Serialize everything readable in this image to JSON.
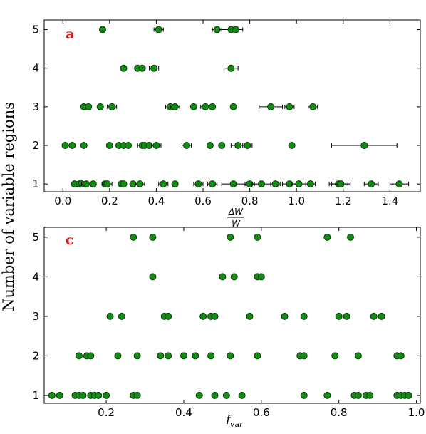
{
  "shared": {
    "ylabel": "Number of variable regions",
    "marker_color": "#138a13",
    "marker_edge": "#0b3d0b",
    "panel_letter_color": "#e8121a"
  },
  "chart_data": [
    {
      "type": "scatter",
      "panel_label": "a",
      "xlabel_numerator": "ΔW",
      "xlabel_denominator": "W",
      "xlim": [
        -0.08,
        1.53
      ],
      "ylim": [
        0.8,
        5.25
      ],
      "xticks": [
        "0.0",
        "0.2",
        "0.4",
        "0.6",
        "0.8",
        "1.0",
        "1.2",
        "1.4"
      ],
      "yticks": [
        "1",
        "2",
        "3",
        "4",
        "5"
      ],
      "points": [
        {
          "x": 0.17,
          "y": 5
        },
        {
          "x": 0.41,
          "y": 5,
          "xerr": 0.02
        },
        {
          "x": 0.66,
          "y": 5,
          "xerr": 0.02
        },
        {
          "x": 0.72,
          "y": 5,
          "xerr": 0.05
        },
        {
          "x": 0.74,
          "y": 5
        },
        {
          "x": 0.26,
          "y": 4
        },
        {
          "x": 0.32,
          "y": 4
        },
        {
          "x": 0.34,
          "y": 4
        },
        {
          "x": 0.39,
          "y": 4,
          "xerr": 0.02
        },
        {
          "x": 0.72,
          "y": 4,
          "xerr": 0.03
        },
        {
          "x": 0.09,
          "y": 3
        },
        {
          "x": 0.11,
          "y": 3
        },
        {
          "x": 0.16,
          "y": 3
        },
        {
          "x": 0.21,
          "y": 3,
          "xerr": 0.02
        },
        {
          "x": 0.46,
          "y": 3,
          "xerr": 0.02
        },
        {
          "x": 0.48,
          "y": 3,
          "xerr": 0.02
        },
        {
          "x": 0.56,
          "y": 3
        },
        {
          "x": 0.61,
          "y": 3,
          "xerr": 0.02
        },
        {
          "x": 0.64,
          "y": 3
        },
        {
          "x": 0.73,
          "y": 3
        },
        {
          "x": 0.89,
          "y": 3,
          "xerr": 0.05
        },
        {
          "x": 0.97,
          "y": 3,
          "xerr": 0.02
        },
        {
          "x": 1.07,
          "y": 3,
          "xerr": 0.02
        },
        {
          "x": 0.01,
          "y": 2
        },
        {
          "x": 0.04,
          "y": 2
        },
        {
          "x": 0.09,
          "y": 2
        },
        {
          "x": 0.2,
          "y": 2
        },
        {
          "x": 0.24,
          "y": 2
        },
        {
          "x": 0.26,
          "y": 2
        },
        {
          "x": 0.28,
          "y": 2
        },
        {
          "x": 0.34,
          "y": 2,
          "xerr": 0.02
        },
        {
          "x": 0.35,
          "y": 2
        },
        {
          "x": 0.37,
          "y": 2
        },
        {
          "x": 0.4,
          "y": 2,
          "xerr": 0.02
        },
        {
          "x": 0.53,
          "y": 2,
          "xerr": 0.02
        },
        {
          "x": 0.63,
          "y": 2
        },
        {
          "x": 0.68,
          "y": 2
        },
        {
          "x": 0.75,
          "y": 2,
          "xerr": 0.03
        },
        {
          "x": 0.79,
          "y": 2,
          "xerr": 0.02
        },
        {
          "x": 0.98,
          "y": 2
        },
        {
          "x": 1.29,
          "y": 2,
          "xerr": 0.14
        },
        {
          "x": 0.05,
          "y": 1
        },
        {
          "x": 0.07,
          "y": 1
        },
        {
          "x": 0.08,
          "y": 1
        },
        {
          "x": 0.1,
          "y": 1,
          "xerr": 0.02
        },
        {
          "x": 0.13,
          "y": 1
        },
        {
          "x": 0.18,
          "y": 1
        },
        {
          "x": 0.19,
          "y": 1,
          "xerr": 0.02
        },
        {
          "x": 0.25,
          "y": 1
        },
        {
          "x": 0.26,
          "y": 1
        },
        {
          "x": 0.3,
          "y": 1
        },
        {
          "x": 0.33,
          "y": 1,
          "xerr": 0.02
        },
        {
          "x": 0.43,
          "y": 1,
          "xerr": 0.02
        },
        {
          "x": 0.48,
          "y": 1
        },
        {
          "x": 0.58,
          "y": 1,
          "xerr": 0.02
        },
        {
          "x": 0.64,
          "y": 1,
          "xerr": 0.02
        },
        {
          "x": 0.73,
          "y": 1,
          "xerr": 0.05
        },
        {
          "x": 0.8,
          "y": 1,
          "xerr": 0.02
        },
        {
          "x": 0.85,
          "y": 1,
          "xerr": 0.04
        },
        {
          "x": 0.91,
          "y": 1,
          "xerr": 0.02
        },
        {
          "x": 0.97,
          "y": 1,
          "xerr": 0.03
        },
        {
          "x": 1.01,
          "y": 1,
          "xerr": 0.03
        },
        {
          "x": 1.06,
          "y": 1,
          "xerr": 0.02
        },
        {
          "x": 1.18,
          "y": 1,
          "xerr": 0.04
        },
        {
          "x": 1.19,
          "y": 1,
          "xerr": 0.04
        },
        {
          "x": 1.32,
          "y": 1,
          "xerr": 0.03
        },
        {
          "x": 1.44,
          "y": 1,
          "xerr": 0.04
        }
      ]
    },
    {
      "type": "scatter",
      "panel_label": "c",
      "xlabel_main": "f",
      "xlabel_sub": "var",
      "xlim": [
        0.04,
        1.01
      ],
      "ylim": [
        0.8,
        5.25
      ],
      "xticks": [
        "0.2",
        "0.4",
        "0.6",
        "0.8",
        "1.0"
      ],
      "yticks": [
        "1",
        "2",
        "3",
        "4",
        "5"
      ],
      "points": [
        {
          "x": 0.27,
          "y": 5
        },
        {
          "x": 0.32,
          "y": 5
        },
        {
          "x": 0.52,
          "y": 5
        },
        {
          "x": 0.59,
          "y": 5
        },
        {
          "x": 0.77,
          "y": 5
        },
        {
          "x": 0.83,
          "y": 5
        },
        {
          "x": 0.32,
          "y": 4
        },
        {
          "x": 0.5,
          "y": 4
        },
        {
          "x": 0.53,
          "y": 4
        },
        {
          "x": 0.59,
          "y": 4
        },
        {
          "x": 0.6,
          "y": 4
        },
        {
          "x": 0.21,
          "y": 3
        },
        {
          "x": 0.24,
          "y": 3
        },
        {
          "x": 0.35,
          "y": 3
        },
        {
          "x": 0.36,
          "y": 3
        },
        {
          "x": 0.45,
          "y": 3
        },
        {
          "x": 0.47,
          "y": 3
        },
        {
          "x": 0.48,
          "y": 3
        },
        {
          "x": 0.57,
          "y": 3
        },
        {
          "x": 0.66,
          "y": 3
        },
        {
          "x": 0.71,
          "y": 3
        },
        {
          "x": 0.8,
          "y": 3
        },
        {
          "x": 0.82,
          "y": 3
        },
        {
          "x": 0.89,
          "y": 3
        },
        {
          "x": 0.91,
          "y": 3
        },
        {
          "x": 0.13,
          "y": 2
        },
        {
          "x": 0.15,
          "y": 2
        },
        {
          "x": 0.16,
          "y": 2
        },
        {
          "x": 0.23,
          "y": 2
        },
        {
          "x": 0.28,
          "y": 2
        },
        {
          "x": 0.34,
          "y": 2
        },
        {
          "x": 0.36,
          "y": 2
        },
        {
          "x": 0.4,
          "y": 2
        },
        {
          "x": 0.43,
          "y": 2
        },
        {
          "x": 0.47,
          "y": 2
        },
        {
          "x": 0.52,
          "y": 2
        },
        {
          "x": 0.59,
          "y": 2
        },
        {
          "x": 0.7,
          "y": 2
        },
        {
          "x": 0.71,
          "y": 2
        },
        {
          "x": 0.79,
          "y": 2
        },
        {
          "x": 0.85,
          "y": 2
        },
        {
          "x": 0.95,
          "y": 2
        },
        {
          "x": 0.96,
          "y": 2
        },
        {
          "x": 0.06,
          "y": 1
        },
        {
          "x": 0.08,
          "y": 1
        },
        {
          "x": 0.12,
          "y": 1
        },
        {
          "x": 0.13,
          "y": 1
        },
        {
          "x": 0.14,
          "y": 1
        },
        {
          "x": 0.16,
          "y": 1
        },
        {
          "x": 0.17,
          "y": 1
        },
        {
          "x": 0.18,
          "y": 1
        },
        {
          "x": 0.2,
          "y": 1
        },
        {
          "x": 0.27,
          "y": 1
        },
        {
          "x": 0.28,
          "y": 1
        },
        {
          "x": 0.44,
          "y": 1
        },
        {
          "x": 0.48,
          "y": 1
        },
        {
          "x": 0.51,
          "y": 1
        },
        {
          "x": 0.55,
          "y": 1
        },
        {
          "x": 0.71,
          "y": 1
        },
        {
          "x": 0.77,
          "y": 1
        },
        {
          "x": 0.84,
          "y": 1
        },
        {
          "x": 0.85,
          "y": 1
        },
        {
          "x": 0.87,
          "y": 1
        },
        {
          "x": 0.88,
          "y": 1
        },
        {
          "x": 0.95,
          "y": 1
        },
        {
          "x": 0.96,
          "y": 1
        },
        {
          "x": 0.97,
          "y": 1
        },
        {
          "x": 0.98,
          "y": 1
        }
      ]
    }
  ]
}
